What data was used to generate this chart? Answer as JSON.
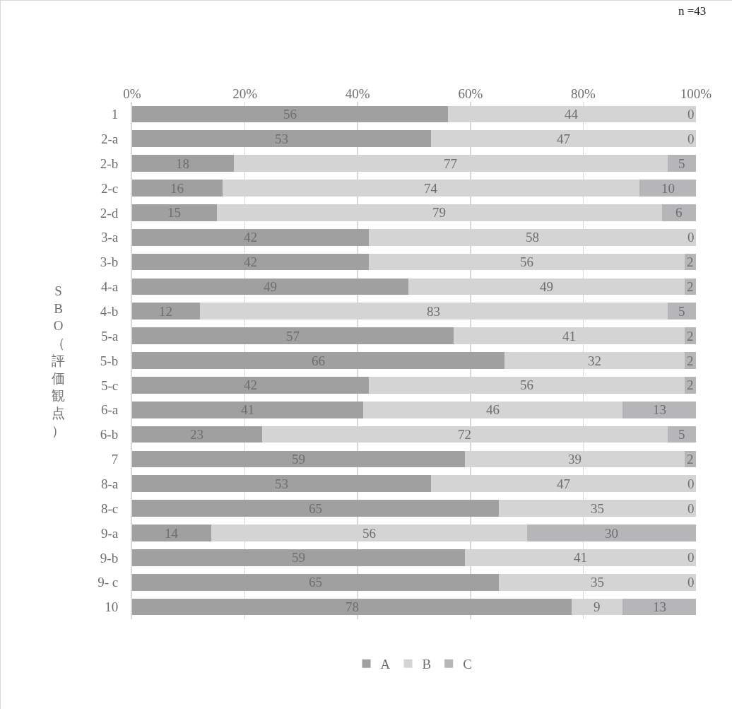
{
  "chart_data": {
    "type": "bar",
    "orientation": "horizontal",
    "stacked": true,
    "ylabel": "SBO（評価観点）",
    "annotations": [
      "n =43"
    ],
    "categories": [
      "1",
      "2-a",
      "2-b",
      "2-c",
      "2-d",
      "3-a",
      "3-b",
      "4-a",
      "4-b",
      "5-a",
      "5-b",
      "5-c",
      "6-a",
      "6-b",
      "7",
      "8-a",
      "8-c",
      "9-a",
      "9-b",
      "9- c",
      "10"
    ],
    "series": [
      {
        "name": "A",
        "color": "#a0a0a0",
        "values": [
          56,
          53,
          18,
          16,
          15,
          42,
          42,
          49,
          12,
          57,
          66,
          42,
          41,
          23,
          59,
          53,
          65,
          14,
          59,
          65,
          78
        ]
      },
      {
        "name": "B",
        "color": "#d4d4d4",
        "values": [
          44,
          47,
          77,
          74,
          79,
          58,
          56,
          49,
          83,
          41,
          32,
          56,
          46,
          72,
          39,
          47,
          35,
          56,
          41,
          35,
          9
        ]
      },
      {
        "name": "C",
        "color": "#b6b6b9",
        "values": [
          0,
          0,
          5,
          10,
          6,
          0,
          2,
          2,
          5,
          2,
          2,
          2,
          13,
          5,
          2,
          0,
          0,
          30,
          0,
          0,
          13
        ]
      }
    ],
    "xlim": [
      0,
      100
    ],
    "xticks": [
      {
        "value": 0,
        "label": "0%"
      },
      {
        "value": 20,
        "label": "20%"
      },
      {
        "value": 40,
        "label": "40%"
      },
      {
        "value": 60,
        "label": "60%"
      },
      {
        "value": 80,
        "label": "80%"
      },
      {
        "value": 100,
        "label": "100%"
      }
    ],
    "grid": "x",
    "legend": "bottom",
    "data_labels": true
  }
}
